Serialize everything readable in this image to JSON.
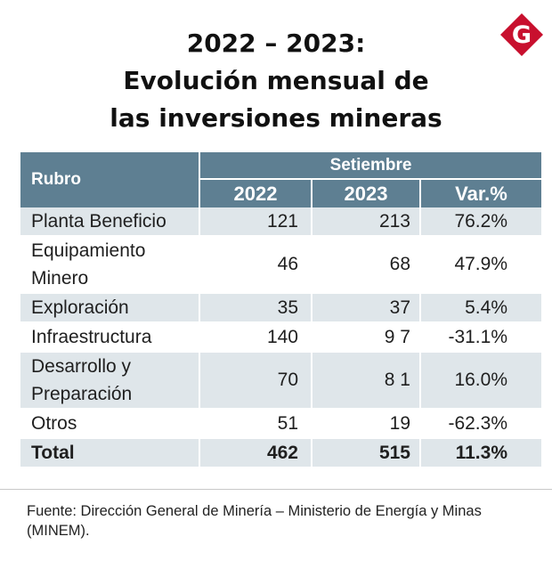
{
  "title": {
    "line1": "2022 – 2023:",
    "line2": "Evolución mensual de",
    "line3": "las inversiones mineras"
  },
  "logo": {
    "letter": "G",
    "color": "#c8102e"
  },
  "colors": {
    "header_bg": "#5e7f92",
    "row_shade": "#dfe6ea",
    "text": "#1f1f1f"
  },
  "chart_data": {
    "type": "table",
    "columns": {
      "rubro": "Rubro",
      "group": "Setiembre",
      "y2022": "2022",
      "y2023": "2023",
      "var": "Var.%"
    },
    "rows": [
      {
        "rubro_lines": [
          "Planta Beneficio"
        ],
        "y2022": "121",
        "y2023": "213",
        "var": "76.2%",
        "shade": true
      },
      {
        "rubro_lines": [
          "Equipamiento",
          "Minero"
        ],
        "y2022": "46",
        "y2023": "68",
        "var": "47.9%",
        "shade": false
      },
      {
        "rubro_lines": [
          "Exploración"
        ],
        "y2022": "35",
        "y2023": "37",
        "var": "5.4%",
        "shade": true
      },
      {
        "rubro_lines": [
          "Infraestructura"
        ],
        "y2022": "140",
        "y2023": "9 7",
        "var": "-31.1%",
        "shade": false
      },
      {
        "rubro_lines": [
          "Desarrollo y",
          "Preparación"
        ],
        "y2022": "70",
        "y2023": "8 1",
        "var": "16.0%",
        "shade": true
      },
      {
        "rubro_lines": [
          "Otros"
        ],
        "y2022": "51",
        "y2023": "19",
        "var": "-62.3%",
        "shade": false
      }
    ],
    "total": {
      "rubro": "Total",
      "y2022": "462",
      "y2023": "515",
      "var": "11.3%"
    }
  },
  "source": {
    "line1": "Fuente: Dirección General de Minería – Ministerio de Energía y Minas",
    "line2": "(MINEM)."
  }
}
